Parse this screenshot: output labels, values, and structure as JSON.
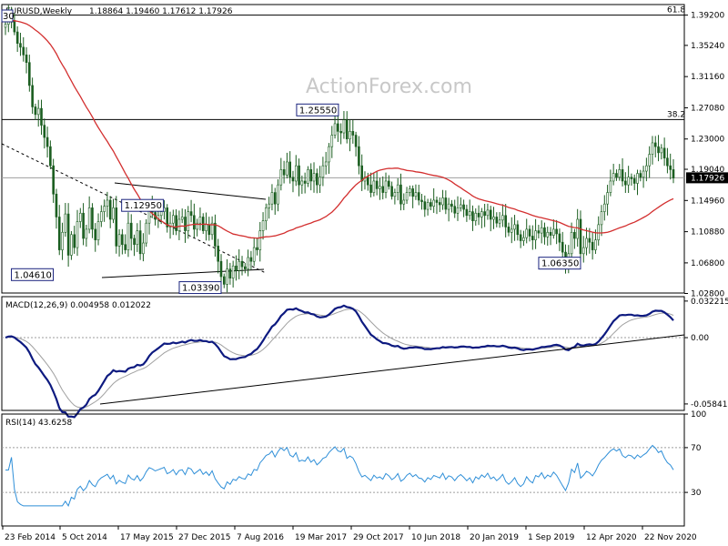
{
  "chart_data": {
    "type": "candlestick",
    "symbol_header": "EURUSD,Weekly",
    "ohlc_header": "1.18864 1.19460 1.17612 1.17926",
    "last_price": "1.17926",
    "watermark": "ActionForex.com",
    "x_tick_labels": [
      "23 Feb 2014",
      "5 Oct 2014",
      "17 May 2015",
      "27 Dec 2015",
      "7 Aug 2016",
      "19 Mar 2017",
      "29 Oct 2017",
      "10 Jun 2018",
      "20 Jan 2019",
      "1 Sep 2019",
      "12 Apr 2020",
      "22 Nov 2020"
    ],
    "price_panel": {
      "ylim": [
        1.0286,
        1.4058
      ],
      "y_tick_values": [
        1.392,
        1.3524,
        1.3116,
        1.2708,
        1.23,
        1.1904,
        1.1496,
        1.1088,
        1.068,
        1.028
      ],
      "y_tick_labels": [
        "1.39200",
        "1.35240",
        "1.31160",
        "1.27080",
        "1.23000",
        "1.19040",
        "1.14960",
        "1.10880",
        "1.06800",
        "1.02800"
      ],
      "closes": [
        1.38,
        1.392,
        1.385,
        1.37,
        1.355,
        1.35,
        1.34,
        1.33,
        1.3,
        1.272,
        1.262,
        1.27,
        1.248,
        1.232,
        1.22,
        1.195,
        1.158,
        1.128,
        1.085,
        1.108,
        1.132,
        1.078,
        1.105,
        1.088,
        1.122,
        1.133,
        1.1,
        1.112,
        1.14,
        1.112,
        1.098,
        1.122,
        1.135,
        1.142,
        1.15,
        1.125,
        1.14,
        1.09,
        1.105,
        1.092,
        1.085,
        1.12,
        1.1,
        1.092,
        1.11,
        1.08,
        1.094,
        1.12,
        1.14,
        1.134,
        1.125,
        1.13,
        1.135,
        1.14,
        1.115,
        1.12,
        1.13,
        1.11,
        1.125,
        1.128,
        1.11,
        1.135,
        1.13,
        1.112,
        1.12,
        1.128,
        1.11,
        1.118,
        1.105,
        1.12,
        1.09,
        1.07,
        1.05,
        1.04,
        1.06,
        1.048,
        1.064,
        1.058,
        1.07,
        1.063,
        1.06,
        1.075,
        1.07,
        1.088,
        1.085,
        1.11,
        1.123,
        1.14,
        1.145,
        1.16,
        1.145,
        1.17,
        1.19,
        1.183,
        1.2,
        1.18,
        1.175,
        1.195,
        1.17,
        1.175,
        1.172,
        1.19,
        1.175,
        1.185,
        1.17,
        1.18,
        1.195,
        1.2,
        1.22,
        1.235,
        1.25,
        1.24,
        1.238,
        1.255,
        1.23,
        1.24,
        1.235,
        1.22,
        1.195,
        1.175,
        1.18,
        1.17,
        1.16,
        1.175,
        1.165,
        1.168,
        1.16,
        1.175,
        1.168,
        1.155,
        1.16,
        1.17,
        1.145,
        1.15,
        1.16,
        1.165,
        1.155,
        1.16,
        1.15,
        1.148,
        1.138,
        1.147,
        1.142,
        1.15,
        1.147,
        1.144,
        1.153,
        1.138,
        1.145,
        1.142,
        1.133,
        1.14,
        1.144,
        1.138,
        1.13,
        1.135,
        1.123,
        1.133,
        1.128,
        1.135,
        1.13,
        1.137,
        1.125,
        1.128,
        1.12,
        1.124,
        1.13,
        1.115,
        1.108,
        1.112,
        1.118,
        1.105,
        1.097,
        1.101,
        1.112,
        1.103,
        1.098,
        1.11,
        1.107,
        1.114,
        1.102,
        1.108,
        1.104,
        1.112,
        1.106,
        1.095,
        1.082,
        1.068,
        1.08,
        1.108,
        1.1,
        1.125,
        1.08,
        1.088,
        1.1,
        1.095,
        1.085,
        1.098,
        1.118,
        1.135,
        1.145,
        1.16,
        1.175,
        1.185,
        1.18,
        1.19,
        1.175,
        1.17,
        1.18,
        1.178,
        1.172,
        1.185,
        1.18,
        1.188,
        1.195,
        1.21,
        1.225,
        1.22,
        1.212,
        1.218,
        1.205,
        1.195,
        1.19,
        1.179
      ],
      "moving_average": "40-week moving average (red line)",
      "horizontal_levels": [
        {
          "label": "61.8",
          "value": 1.392
        },
        {
          "label": "38.2",
          "value": 1.2555
        }
      ],
      "callouts": [
        {
          "label": "1.04610",
          "value": 1.0461,
          "bar": 19
        },
        {
          "label": "1.12950",
          "value": 1.1295,
          "bar": 40
        },
        {
          "label": "1.03390",
          "value": 1.0339,
          "bar": 72
        },
        {
          "label": "1.25550",
          "value": 1.2555,
          "bar": 113
        },
        {
          "label": "1.06350",
          "value": 1.0635,
          "bar": 192
        }
      ],
      "truncated_callout": "30"
    },
    "macd_panel": {
      "label": "MACD(12,26,9) 0.004958 0.012022",
      "ylim": [
        -0.0641,
        0.0361
      ],
      "y_tick_values": [
        0.032215,
        0.0,
        -0.058413
      ],
      "y_tick_labels": [
        "0.032215",
        "0.00",
        "-0.058413"
      ],
      "macd_line": "thick navy line",
      "signal_line": "thin grey line",
      "trendline": "black rising support line from the 2015 low"
    },
    "rsi_panel": {
      "label": "RSI(14) 43.6258",
      "ylim": [
        0,
        100
      ],
      "y_tick_values": [
        100,
        70,
        30
      ],
      "y_tick_labels": [
        "100",
        "70",
        "30"
      ],
      "series_color": "#2f8fd8"
    },
    "colors": {
      "candle": "#1b5e20",
      "moving_average": "#d32f2f",
      "macd": "#0d1a80",
      "signal": "#a0a0a0",
      "rsi": "#2f8fd8",
      "grid_level": "#000000",
      "watermark": "#c8c8c8"
    }
  }
}
